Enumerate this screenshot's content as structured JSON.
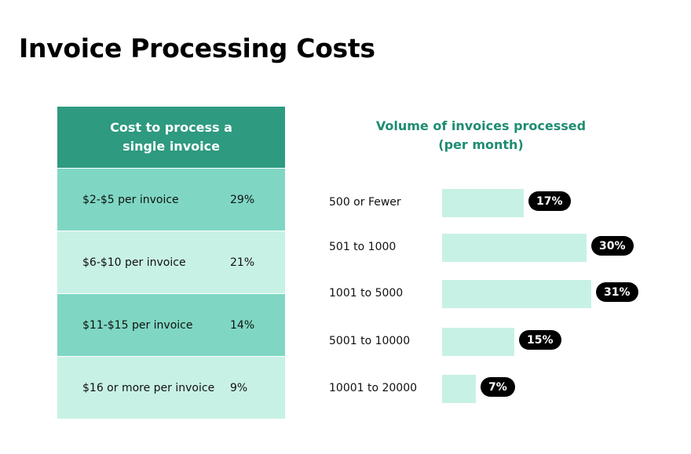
{
  "title": "Invoice Processing Costs",
  "cost_table": {
    "header": "Cost to process a single invoice",
    "rows": [
      {
        "label": "$2-$5 per invoice",
        "pct": "29%"
      },
      {
        "label": "$6-$10 per invoice",
        "pct": "21%"
      },
      {
        "label": "$11-$15 per invoice",
        "pct": "14%"
      },
      {
        "label": "$16 or more per invoice",
        "pct": "9%"
      }
    ]
  },
  "colors": {
    "header_green": "#2e9a80",
    "row_dark": "#7fd7c3",
    "row_light": "#c8f1e6",
    "bar": "#c8f1e6",
    "title_green": "#1f8c72",
    "pill": "#000000"
  },
  "chart_data": {
    "type": "bar",
    "orientation": "horizontal",
    "title": "Volume of invoices processed (per month)",
    "categories": [
      "500 or Fewer",
      "501 to 1000",
      "1001 to 5000",
      "5001 to 10000",
      "10001 to 20000"
    ],
    "values": [
      17,
      30,
      31,
      15,
      7
    ],
    "value_labels": [
      "17%",
      "30%",
      "31%",
      "15%",
      "7%"
    ],
    "unit": "%",
    "xlim": [
      0,
      31
    ],
    "grid": false
  }
}
